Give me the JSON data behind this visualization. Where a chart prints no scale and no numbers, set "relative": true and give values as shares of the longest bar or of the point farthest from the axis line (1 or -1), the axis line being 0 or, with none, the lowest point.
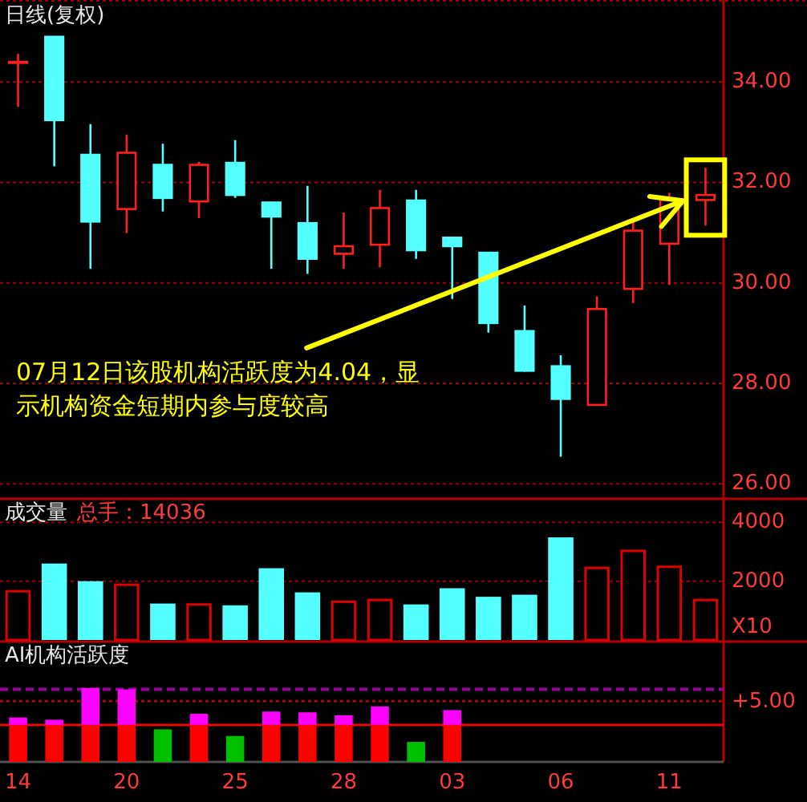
{
  "chart_data": [
    {
      "type": "candlestick",
      "title": "日线(复权)",
      "categories": [
        "14",
        null,
        null,
        "20",
        null,
        null,
        "25",
        null,
        null,
        "28",
        null,
        null,
        "03",
        null,
        null,
        "06",
        null,
        null,
        "11",
        null
      ],
      "ohlc": [
        [
          34.38,
          34.56,
          33.51,
          34.4
        ],
        [
          34.9,
          34.9,
          32.32,
          33.24
        ],
        [
          32.55,
          33.16,
          30.28,
          31.22
        ],
        [
          31.47,
          32.95,
          30.99,
          32.59
        ],
        [
          32.35,
          32.77,
          31.42,
          31.69
        ],
        [
          31.62,
          32.41,
          31.29,
          32.35
        ],
        [
          32.39,
          32.84,
          31.69,
          31.75
        ],
        [
          31.6,
          31.6,
          30.28,
          31.32
        ],
        [
          31.19,
          31.93,
          30.18,
          30.48
        ],
        [
          30.58,
          31.4,
          30.28,
          30.73
        ],
        [
          30.76,
          31.85,
          30.31,
          31.49
        ],
        [
          31.64,
          31.85,
          30.48,
          30.65
        ],
        [
          30.9,
          30.9,
          29.68,
          30.73
        ],
        [
          30.6,
          30.6,
          29.01,
          29.2
        ],
        [
          29.04,
          29.55,
          28.23,
          28.25
        ],
        [
          28.34,
          28.56,
          26.54,
          27.69
        ],
        [
          27.57,
          29.73,
          27.57,
          29.48
        ],
        [
          29.88,
          31.25,
          29.6,
          31.04
        ],
        [
          30.78,
          31.79,
          29.96,
          31.65
        ],
        [
          31.65,
          32.29,
          31.14,
          31.75
        ]
      ],
      "colors": [
        "#ff1e1e",
        "#54ffff",
        "#54ffff",
        "#ff1e1e",
        "#54ffff",
        "#ff1e1e",
        "#54ffff",
        "#54ffff",
        "#54ffff",
        "#ff1e1e",
        "#ff1e1e",
        "#54ffff",
        "#54ffff",
        "#54ffff",
        "#54ffff",
        "#54ffff",
        "#ff1e1e",
        "#ff1e1e",
        "#ff1e1e",
        "#ff1e1e"
      ],
      "ylim": [
        25.7,
        35.6
      ],
      "yticks": [
        {
          "value": 26,
          "label": "26.00"
        },
        {
          "value": 28,
          "label": "28.00"
        },
        {
          "value": 30,
          "label": "30.00"
        },
        {
          "value": 32,
          "label": "32.00"
        },
        {
          "value": 34,
          "label": "34.00"
        }
      ],
      "grid": "y",
      "tick_labels": "y",
      "annotations": [
        "07月12日该股机构活跃度为4.04，显示机构资金短期内参与度较高"
      ]
    },
    {
      "type": "bar",
      "title": "成交量",
      "categories": [
        "14",
        null,
        null,
        "20",
        null,
        null,
        "25",
        null,
        null,
        "28",
        null,
        null,
        "03",
        null,
        null,
        "06",
        null,
        null,
        "11",
        null
      ],
      "values": [
        1700,
        2600,
        2000,
        1920,
        1240,
        1250,
        1180,
        2440,
        1620,
        1340,
        1400,
        1210,
        1760,
        1470,
        1540,
        3490,
        2490,
        3070,
        2530,
        1400
      ],
      "colors": [
        "#dd0000",
        "#54ffff",
        "#54ffff",
        "#dd0000",
        "#54ffff",
        "#dd0000",
        "#54ffff",
        "#54ffff",
        "#54ffff",
        "#dd0000",
        "#dd0000",
        "#54ffff",
        "#54ffff",
        "#54ffff",
        "#54ffff",
        "#54ffff",
        "#dd0000",
        "#dd0000",
        "#dd0000",
        "#dd0000"
      ],
      "ylim": [
        0,
        4800
      ],
      "yticks": [
        2000,
        4000
      ],
      "grid": "y",
      "tick_labels": "y",
      "annotations": [
        "总手：14036",
        "X10"
      ]
    },
    {
      "type": "bar",
      "title": "AI机构活跃度",
      "relative": true,
      "stacked": true,
      "categories": [
        "14",
        null,
        null,
        "20",
        null,
        null,
        "25",
        null,
        null,
        "28",
        null,
        null,
        "03",
        null,
        null,
        "06",
        null,
        null,
        "11",
        null
      ],
      "series": [
        {
          "color": "#ff0000",
          "values": [
            0.5,
            0.5,
            0.5,
            0.5,
            null,
            0.5,
            null,
            0.5,
            0.5,
            0.5,
            0.5,
            null,
            0.5,
            null,
            null,
            null,
            null,
            null,
            null,
            null
          ]
        },
        {
          "color": "#ff00ff",
          "values": [
            0.1,
            0.07,
            0.5,
            0.48,
            null,
            0.15,
            null,
            0.18,
            0.17,
            0.13,
            0.25,
            null,
            0.2,
            null,
            null,
            null,
            null,
            null,
            null,
            null
          ]
        },
        {
          "color": "#00c000",
          "values": [
            null,
            null,
            null,
            null,
            0.44,
            null,
            0.35,
            null,
            null,
            null,
            null,
            0.27,
            null,
            null,
            null,
            null,
            null,
            null,
            null,
            null
          ]
        }
      ],
      "ref_lines": [
        {
          "axis": "y",
          "value": 0.98,
          "color": "#a000a0",
          "line_style": "dashed"
        },
        {
          "axis": "y",
          "value": 0.82,
          "color": "#b00000",
          "line_style": "dotted"
        },
        {
          "axis": "y",
          "value": 0.5,
          "color": "#ff0000",
          "line_style": "solid"
        }
      ],
      "annotations": [
        "+5.00"
      ],
      "tick_labels": "x"
    }
  ]
}
